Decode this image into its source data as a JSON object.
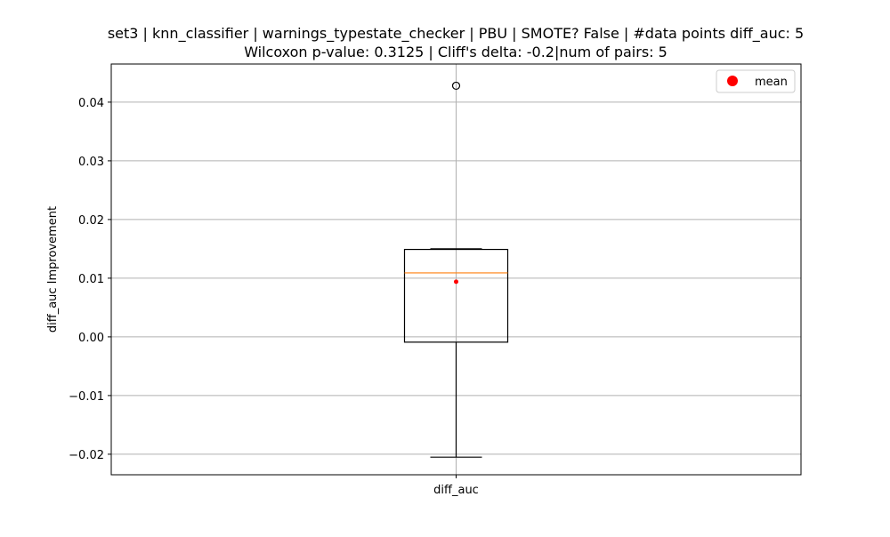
{
  "chart_data": {
    "type": "box",
    "title_line1": "set3 | knn_classifier | warnings_typestate_checker | PBU | SMOTE? False | #data points diff_auc: 5",
    "title_line2": "Wilcoxon p-value: 0.3125 | Cliff's delta: -0.2|num of pairs: 5",
    "xlabel": "",
    "ylabel": "diff_auc Improvement",
    "categories": [
      "diff_auc"
    ],
    "ylim": [
      -0.0235,
      0.0465
    ],
    "yticks": [
      -0.02,
      -0.01,
      0.0,
      0.01,
      0.02,
      0.03,
      0.04
    ],
    "ytick_labels": [
      "−0.02",
      "−0.01",
      "0.00",
      "0.01",
      "0.02",
      "0.03",
      "0.04"
    ],
    "grid": true,
    "legend": {
      "position": "top-right",
      "entries": [
        {
          "label": "mean",
          "marker": "circle",
          "color": "#ff0000"
        }
      ]
    },
    "box": {
      "whisker_low": -0.0205,
      "q1": -0.0009,
      "median": 0.0109,
      "q3": 0.0149,
      "whisker_high": 0.015,
      "mean": 0.0094,
      "outliers": [
        0.0428
      ]
    },
    "colors": {
      "box": "#000000",
      "median": "#ff7f0e",
      "mean": "#ff0000",
      "grid": "#b0b0b0",
      "axes": "#000000"
    }
  }
}
